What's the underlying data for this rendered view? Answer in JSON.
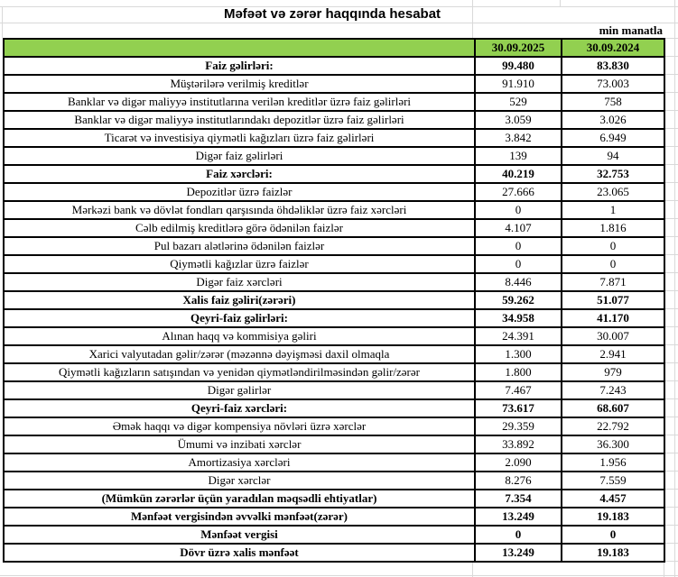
{
  "title": "Məfəət və zərər haqqında hesabat",
  "unit_note": "min manatla",
  "colors": {
    "header_green": "#92d050",
    "table_border": "#000000",
    "gridline_gray": "#d9d9d9"
  },
  "table": {
    "columns": [
      "30.09.2025",
      "30.09.2024"
    ],
    "rows": [
      {
        "label": "Faiz gəlirləri:",
        "v2025": "99.480",
        "v2024": "83.830",
        "bold": true
      },
      {
        "label": "Müştərilərə verilmiş kreditlər",
        "v2025": "91.910",
        "v2024": "73.003",
        "bold": false
      },
      {
        "label": "Banklar və digər maliyyə institutlarına verilən kreditlər üzrə faiz gəlirləri",
        "v2025": "529",
        "v2024": "758",
        "bold": false
      },
      {
        "label": "Banklar və digər maliyyə institutlarındakı depozitlər üzrə faiz gəlirləri",
        "v2025": "3.059",
        "v2024": "3.026",
        "bold": false
      },
      {
        "label": "Ticarət və investisiya qiymətli kağızları üzrə faiz gəlirləri",
        "v2025": "3.842",
        "v2024": "6.949",
        "bold": false
      },
      {
        "label": "Digər faiz gəlirləri",
        "v2025": "139",
        "v2024": "94",
        "bold": false
      },
      {
        "label": "Faiz xərcləri:",
        "v2025": "40.219",
        "v2024": "32.753",
        "bold": true
      },
      {
        "label": "Depozitlər üzrə faizlər",
        "v2025": "27.666",
        "v2024": "23.065",
        "bold": false
      },
      {
        "label": "Mərkəzi bank və dövlət fondları qarşısında öhdəliklər üzrə faiz xərcləri",
        "v2025": "0",
        "v2024": "1",
        "bold": false
      },
      {
        "label": "Cəlb edilmiş kreditlərə görə ödənilən faizlər",
        "v2025": "4.107",
        "v2024": "1.816",
        "bold": false
      },
      {
        "label": "Pul bazarı alətlərinə ödənilən faizlər",
        "v2025": "0",
        "v2024": "0",
        "bold": false
      },
      {
        "label": "Qiymətli kağızlar üzrə faizlər",
        "v2025": "0",
        "v2024": "0",
        "bold": false
      },
      {
        "label": "Digər faiz xərcləri",
        "v2025": "8.446",
        "v2024": "7.871",
        "bold": false
      },
      {
        "label": "Xalis faiz gəliri(zərəri)",
        "v2025": "59.262",
        "v2024": "51.077",
        "bold": true
      },
      {
        "label": "Qeyri-faiz gəlirləri:",
        "v2025": "34.958",
        "v2024": "41.170",
        "bold": true
      },
      {
        "label": "Alınan haqq və kommisiya gəliri",
        "v2025": "24.391",
        "v2024": "30.007",
        "bold": false
      },
      {
        "label": "Xarici valyutadan gəlir/zərər (məzənnə dəyişməsi daxil olmaqla",
        "v2025": "1.300",
        "v2024": "2.941",
        "bold": false
      },
      {
        "label": "Qiymətli kağızların satışından və yenidən qiymətləndirilməsindən gəlir/zərər",
        "v2025": "1.800",
        "v2024": "979",
        "bold": false
      },
      {
        "label": "Digər gəlirlər",
        "v2025": "7.467",
        "v2024": "7.243",
        "bold": false
      },
      {
        "label": "Qeyri-faiz xərcləri:",
        "v2025": "73.617",
        "v2024": "68.607",
        "bold": true
      },
      {
        "label": "Əmək haqqı və digər kompensiya növləri üzrə xərclər",
        "v2025": "29.359",
        "v2024": "22.792",
        "bold": false
      },
      {
        "label": "Ümumi və inzibati xərclər",
        "v2025": "33.892",
        "v2024": "36.300",
        "bold": false
      },
      {
        "label": "Amortizasiya xərcləri",
        "v2025": "2.090",
        "v2024": "1.956",
        "bold": false
      },
      {
        "label": "Digər xərclər",
        "v2025": "8.276",
        "v2024": "7.559",
        "bold": false
      },
      {
        "label": "(Mümkün zərərlər üçün yaradılan məqsədli ehtiyatlar)",
        "v2025": "7.354",
        "v2024": "4.457",
        "bold": true
      },
      {
        "label": "Mənfəət vergisindən əvvəlki mənfəət(zərər)",
        "v2025": "13.249",
        "v2024": "19.183",
        "bold": true
      },
      {
        "label": "Mənfəət vergisi",
        "v2025": "0",
        "v2024": "0",
        "bold": true
      },
      {
        "label": "Dövr üzrə xalis mənfəət",
        "v2025": "13.249",
        "v2024": "19.183",
        "bold": true
      }
    ]
  }
}
